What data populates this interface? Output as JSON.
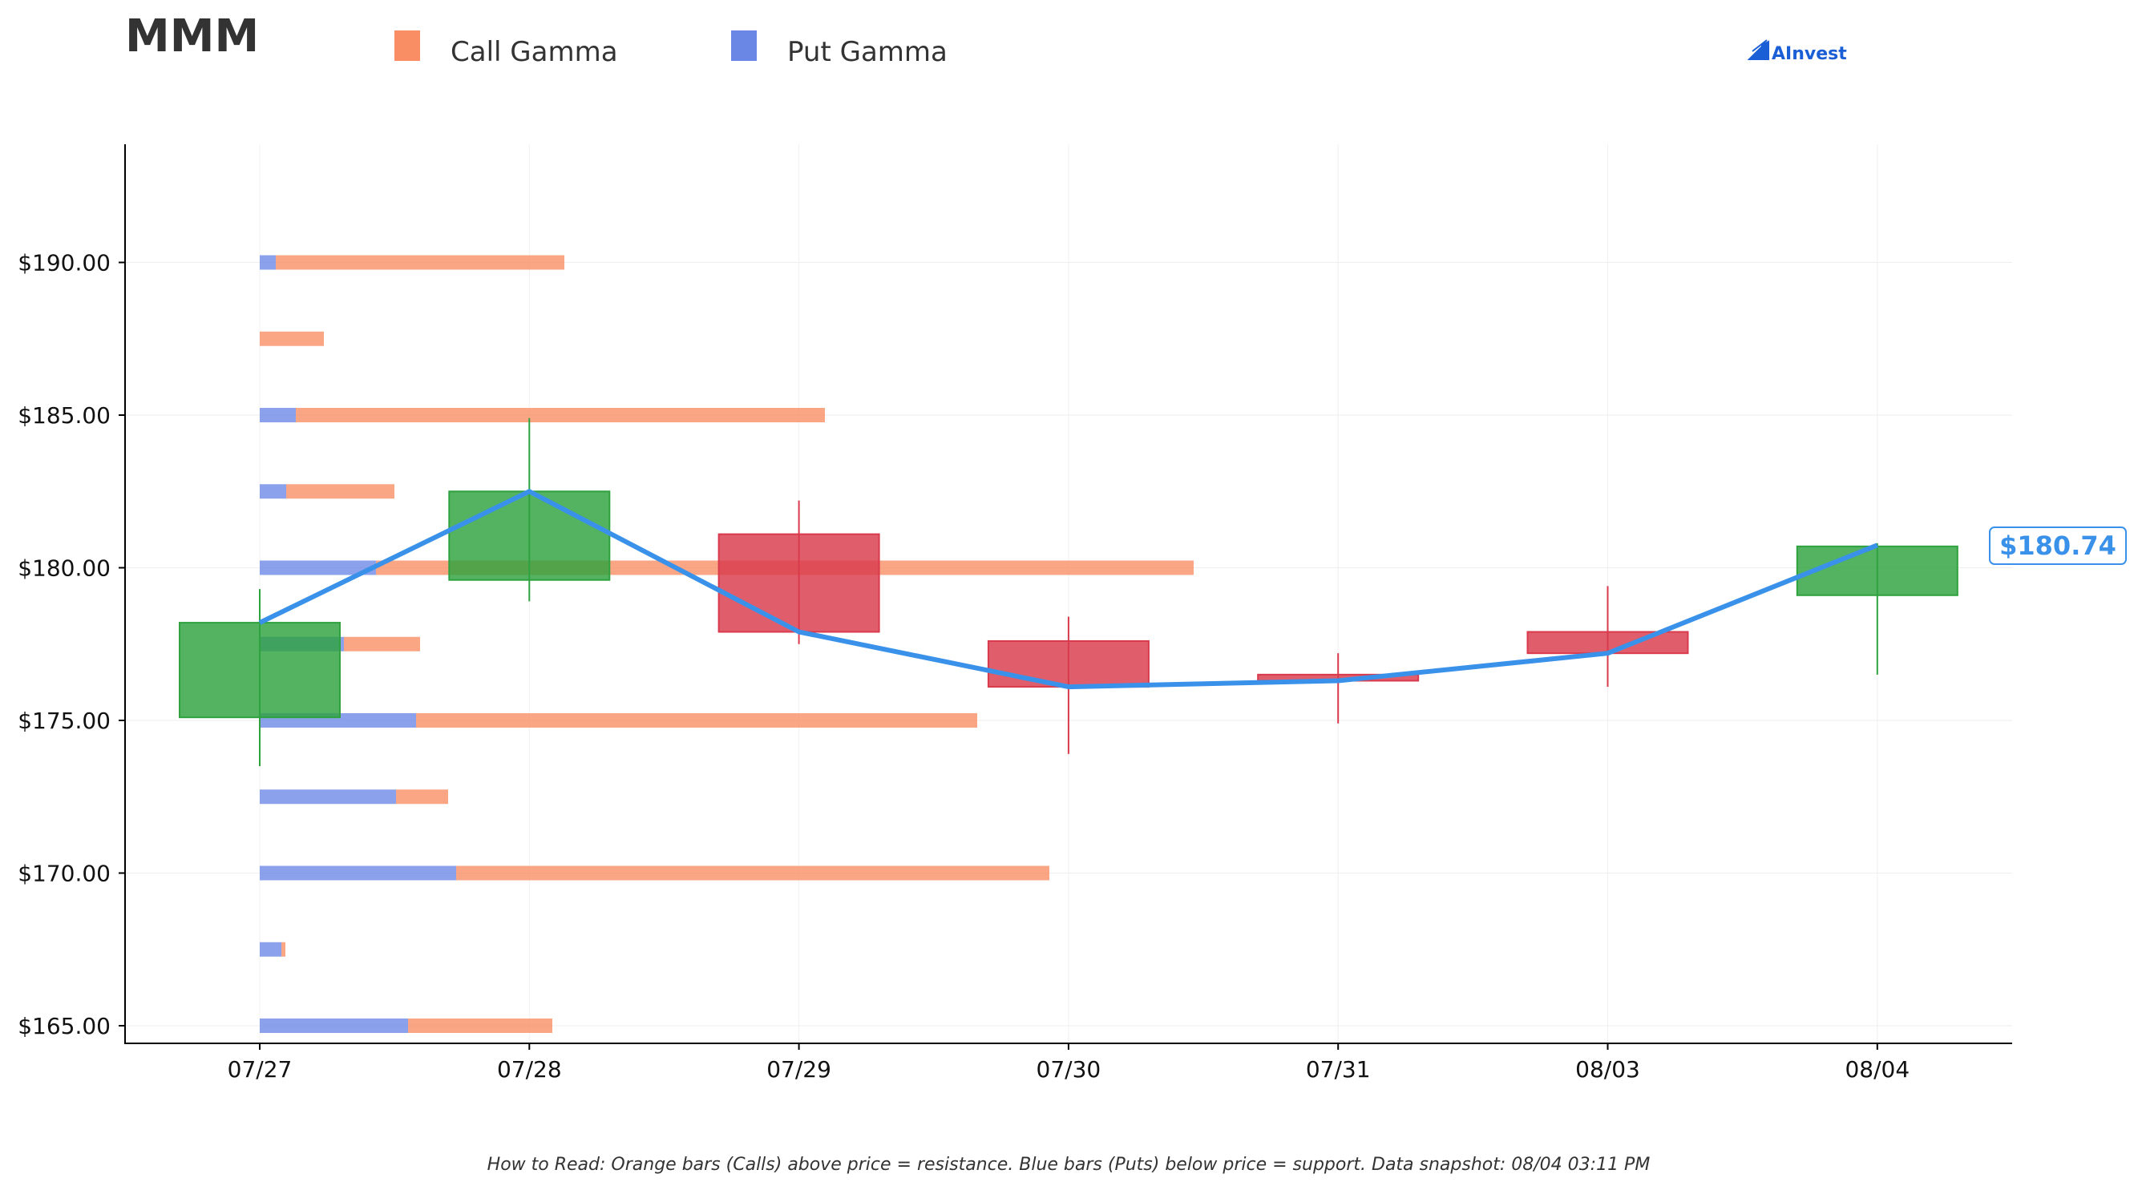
{
  "ticker": "MMM",
  "legend": {
    "call_label": "Call Gamma",
    "put_label": "Put Gamma"
  },
  "brand": "AInvest",
  "footnote": "How to Read: Orange bars (Calls) above price = resistance. Blue bars (Puts) below price = support. Data snapshot: 08/04 03:11 PM",
  "colors": {
    "call": "#f98d63",
    "put": "#6a87e6",
    "up": "#2ea23e",
    "down": "#d93a4c",
    "price_line": "#3a91ea",
    "brand": "#1b5fd6"
  },
  "chart_data": {
    "type": "candlestick+bar",
    "xlabel": "",
    "ylabel": "",
    "ylim": [
      164.0,
      194.0
    ],
    "grid": true,
    "legend_position": "top-left",
    "dates": [
      "07/27",
      "07/28",
      "07/29",
      "07/30",
      "07/31",
      "08/03",
      "08/04"
    ],
    "yticks": [
      165,
      170,
      175,
      180,
      185,
      190
    ],
    "ytick_labels": [
      "$165.00",
      "$170.00",
      "$175.00",
      "$180.00",
      "$185.00",
      "$190.00"
    ],
    "candles": [
      {
        "date": "07/27",
        "open": 175.1,
        "close": 178.2,
        "high": 179.3,
        "low": 173.5
      },
      {
        "date": "07/28",
        "open": 179.6,
        "close": 182.5,
        "high": 184.9,
        "low": 178.9
      },
      {
        "date": "07/29",
        "open": 181.1,
        "close": 177.9,
        "high": 182.2,
        "low": 177.5
      },
      {
        "date": "07/30",
        "open": 177.6,
        "close": 176.1,
        "high": 178.4,
        "low": 173.9
      },
      {
        "date": "07/31",
        "open": 176.5,
        "close": 176.3,
        "high": 177.2,
        "low": 174.9
      },
      {
        "date": "08/03",
        "open": 177.9,
        "close": 177.2,
        "high": 179.4,
        "low": 176.1
      },
      {
        "date": "08/04",
        "open": 179.1,
        "close": 180.7,
        "high": 180.8,
        "low": 176.5
      }
    ],
    "price_line": [
      {
        "date": "07/27",
        "price": 178.2
      },
      {
        "date": "07/28",
        "price": 182.5
      },
      {
        "date": "07/29",
        "price": 177.9
      },
      {
        "date": "07/30",
        "price": 176.1
      },
      {
        "date": "07/31",
        "price": 176.3
      },
      {
        "date": "08/03",
        "price": 177.2
      },
      {
        "date": "08/04",
        "price": 180.74
      }
    ],
    "last_price_label": "$180.74",
    "gamma_levels": [
      {
        "strike": 190.0,
        "call": 3.6,
        "put": 0.2
      },
      {
        "strike": 187.5,
        "call": 0.8,
        "put": 0.0
      },
      {
        "strike": 185.0,
        "call": 6.6,
        "put": 0.45
      },
      {
        "strike": 182.5,
        "call": 1.35,
        "put": 0.33
      },
      {
        "strike": 180.0,
        "call": 10.2,
        "put": 1.45
      },
      {
        "strike": 177.5,
        "call": 0.95,
        "put": 1.05
      },
      {
        "strike": 175.0,
        "call": 7.0,
        "put": 1.95
      },
      {
        "strike": 172.5,
        "call": 0.65,
        "put": 1.7
      },
      {
        "strike": 170.0,
        "call": 7.4,
        "put": 2.45
      },
      {
        "strike": 167.5,
        "call": 0.05,
        "put": 0.27
      },
      {
        "strike": 165.0,
        "call": 1.8,
        "put": 1.85
      }
    ],
    "gamma_scale_max": 11.8
  }
}
